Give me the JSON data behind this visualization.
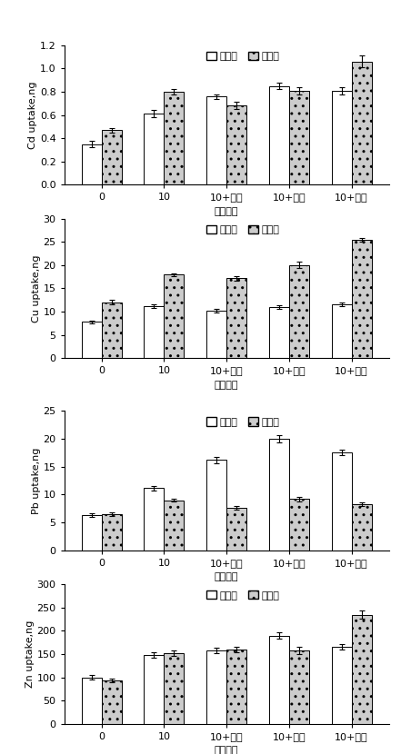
{
  "categories": [
    "0",
    "10",
    "10+胶粒",
    "10+蛭石",
    "10+蛋壳"
  ],
  "legend_labels": [
    "第一茬",
    "第二茬"
  ],
  "charts": [
    {
      "ylabel": "Cd uptake,ng",
      "ylim": [
        0,
        1.2
      ],
      "yticks": [
        0,
        0.2,
        0.4,
        0.6,
        0.8,
        1.0,
        1.2
      ],
      "bar1_values": [
        0.35,
        0.61,
        0.76,
        0.85,
        0.81
      ],
      "bar2_values": [
        0.47,
        0.8,
        0.68,
        0.81,
        1.06
      ],
      "bar1_err": [
        0.03,
        0.03,
        0.02,
        0.03,
        0.03
      ],
      "bar2_err": [
        0.02,
        0.02,
        0.03,
        0.03,
        0.05
      ]
    },
    {
      "ylabel": "Cu uptake,ng",
      "ylim": [
        0,
        30
      ],
      "yticks": [
        0,
        5,
        10,
        15,
        20,
        25,
        30
      ],
      "bar1_values": [
        7.8,
        11.2,
        10.2,
        11.0,
        11.5
      ],
      "bar2_values": [
        12.0,
        18.0,
        17.2,
        20.0,
        25.5
      ],
      "bar1_err": [
        0.3,
        0.4,
        0.4,
        0.4,
        0.4
      ],
      "bar2_err": [
        0.5,
        0.3,
        0.5,
        0.7,
        0.4
      ]
    },
    {
      "ylabel": "Pb uptake,ng",
      "ylim": [
        0,
        25
      ],
      "yticks": [
        0,
        5,
        10,
        15,
        20,
        25
      ],
      "bar1_values": [
        6.3,
        11.2,
        16.2,
        20.0,
        17.5
      ],
      "bar2_values": [
        6.5,
        9.0,
        7.6,
        9.2,
        8.3
      ],
      "bar1_err": [
        0.3,
        0.4,
        0.6,
        0.7,
        0.5
      ],
      "bar2_err": [
        0.3,
        0.3,
        0.3,
        0.4,
        0.3
      ]
    },
    {
      "ylabel": "Zn uptake,ng",
      "ylim": [
        0,
        300
      ],
      "yticks": [
        0,
        50,
        100,
        150,
        200,
        250,
        300
      ],
      "bar1_values": [
        100,
        148,
        158,
        190,
        165
      ],
      "bar2_values": [
        93,
        152,
        160,
        158,
        235
      ],
      "bar1_err": [
        5,
        6,
        6,
        7,
        6
      ],
      "bar2_err": [
        4,
        5,
        6,
        7,
        8
      ]
    }
  ],
  "xlabel": "不同处理",
  "bar_width": 0.32,
  "color1": "#ffffff",
  "color2": "#cccccc",
  "hatch1": "",
  "hatch2": "..",
  "edgecolor": "#000000",
  "figsize": [
    4.41,
    8.3
  ],
  "dpi": 100,
  "label_fontsize": 8,
  "tick_fontsize": 8,
  "legend_fontsize": 8
}
